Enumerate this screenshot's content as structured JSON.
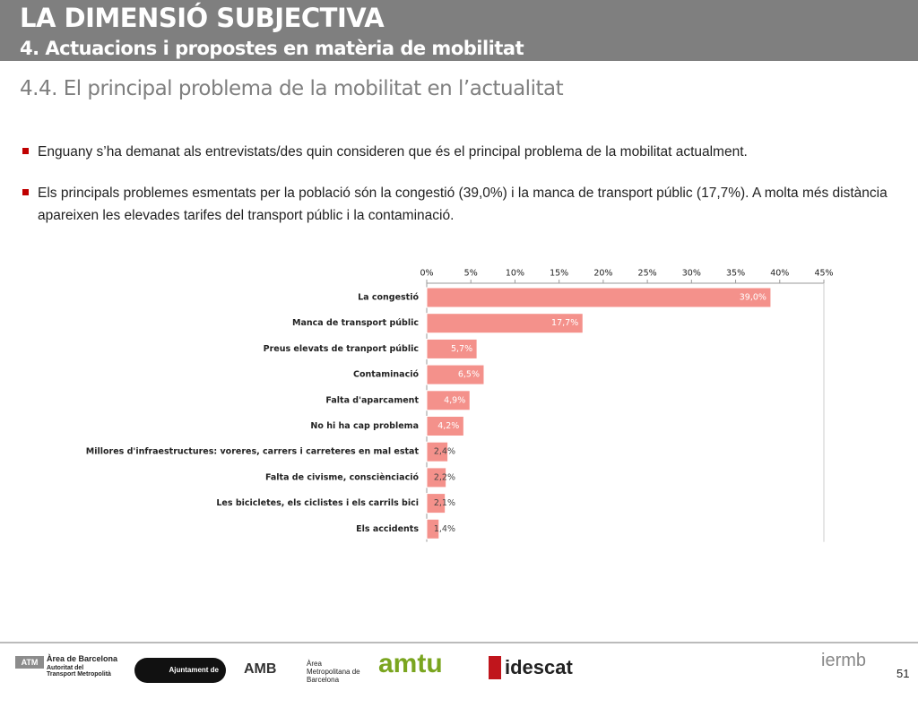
{
  "header": {
    "title": "LA DIMENSIÓ SUBJECTIVA",
    "subtitle": "4. Actuacions i propostes en matèria de mobilitat",
    "section": "4.4. El principal problema de la mobilitat en l’actualitat"
  },
  "bullets": [
    "Enguany s’ha demanat als entrevistats/des quin consideren que és el principal problema de la mobilitat actualment.",
    "Els principals problemes esmentats per la població són la congestió (39,0%) i la manca de transport públic (17,7%). A molta més distància apareixen les elevades tarifes del transport públic i la contaminació."
  ],
  "chart_data": {
    "type": "bar",
    "orientation": "horizontal",
    "color": "#f4918b",
    "categories": [
      "La congestió",
      "Manca de transport públic",
      "Preus elevats de tranport públic",
      "Contaminació",
      "Falta d'aparcament",
      "No hi ha cap problema",
      "Millores d'infraestructures: voreres, carrers i carreteres en mal estat",
      "Falta de civisme, consciènciació",
      "Les bicicletes, els ciclistes i els carrils bici",
      "Els accidents"
    ],
    "values": [
      39.0,
      17.7,
      5.7,
      6.5,
      4.9,
      4.2,
      2.4,
      2.2,
      2.1,
      1.4
    ],
    "value_labels": [
      "39,0%",
      "17,7%",
      "5,7%",
      "6,5%",
      "4,9%",
      "4,2%",
      "2,4%",
      "2,2%",
      "2,1%",
      "1,4%"
    ],
    "xlim": [
      0,
      45
    ],
    "xticks": [
      {
        "value": 0,
        "label": "0%"
      },
      {
        "value": 5,
        "label": "5%"
      },
      {
        "value": 10,
        "label": "10%"
      },
      {
        "value": 15,
        "label": "15%"
      },
      {
        "value": 20,
        "label": "20%"
      },
      {
        "value": 25,
        "label": "25%"
      },
      {
        "value": 30,
        "label": "30%"
      },
      {
        "value": 35,
        "label": "35%"
      },
      {
        "value": 40,
        "label": "40%"
      },
      {
        "value": 45,
        "label": "45%"
      }
    ],
    "grid": false
  },
  "footer": {
    "logos": [
      "ATM",
      "Àrea de Barcelona",
      "Autoritat del Transport Metropolità",
      "Ajuntament de Barcelona",
      "AMB",
      "Àrea Metropolitana de Barcelona",
      "amtu",
      "idescat",
      "iermb"
    ],
    "page": "51"
  }
}
